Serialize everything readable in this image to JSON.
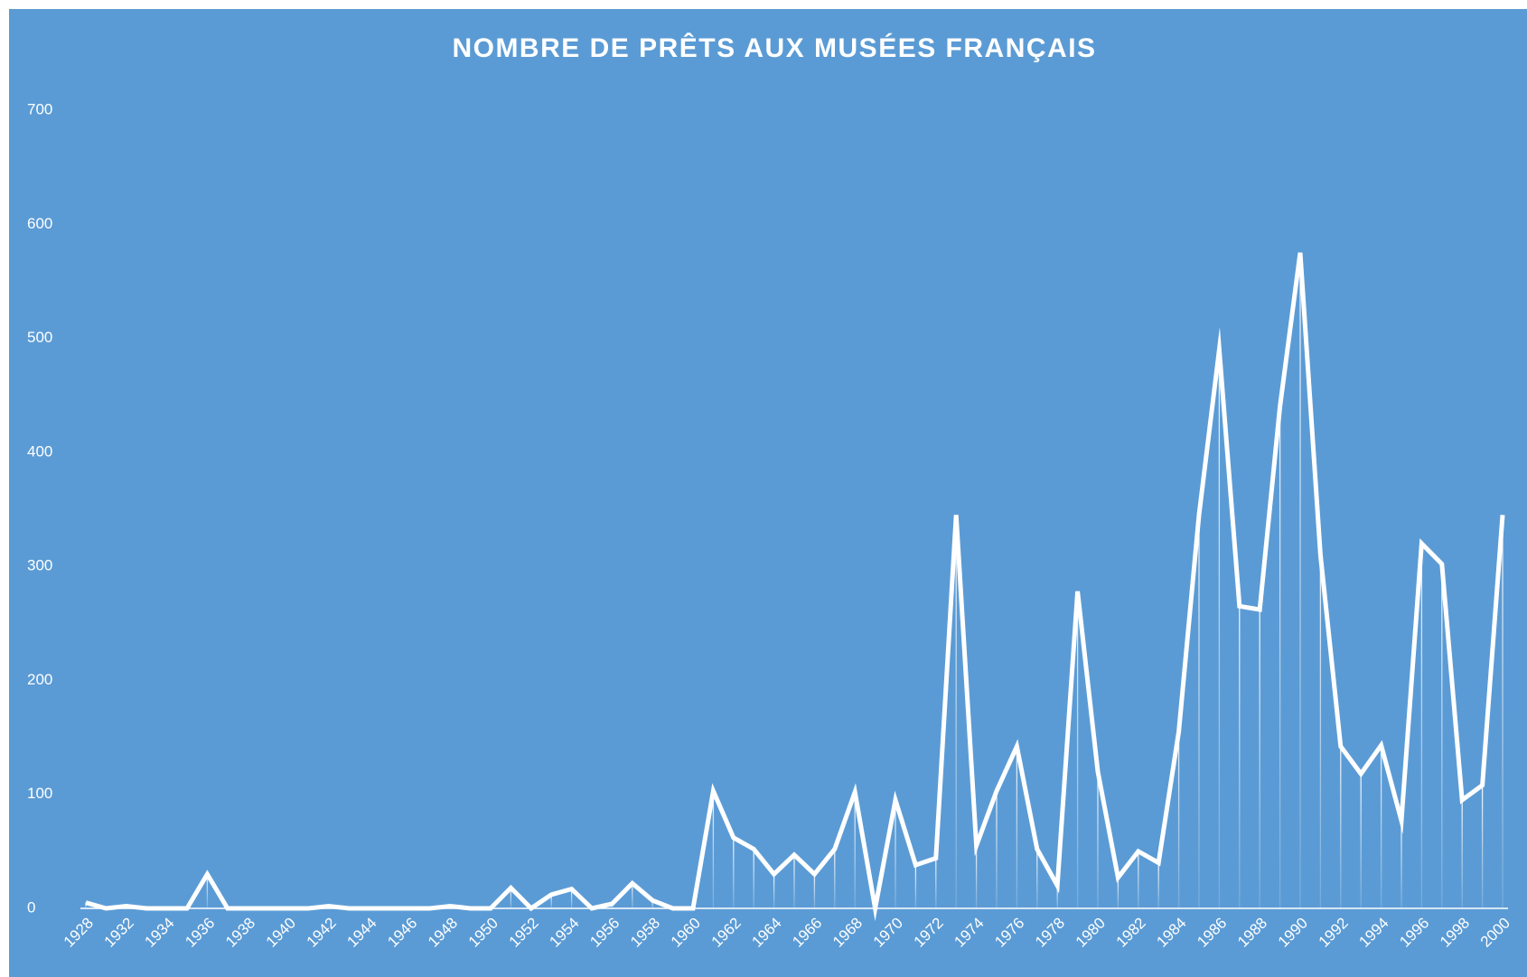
{
  "chart_data": {
    "type": "line",
    "title": "NOMBRE DE PRÊTS AUX MUSÉES FRANÇAIS",
    "categories": [
      "1928",
      null,
      "1932",
      null,
      "1934",
      null,
      "1936",
      null,
      "1938",
      null,
      "1940",
      null,
      "1942",
      null,
      "1944",
      null,
      "1946",
      null,
      "1948",
      null,
      "1950",
      null,
      "1952",
      null,
      "1954",
      null,
      "1956",
      null,
      "1958",
      null,
      "1960",
      null,
      "1962",
      null,
      "1964",
      null,
      "1966",
      null,
      "1968",
      null,
      "1970",
      null,
      "1972",
      null,
      "1974",
      null,
      "1976",
      null,
      "1978",
      null,
      "1980",
      null,
      "1982",
      null,
      "1984",
      null,
      "1986",
      null,
      "1988",
      null,
      "1990",
      null,
      "1992",
      null,
      "1994",
      null,
      "1996",
      null,
      "1998",
      null,
      "2000"
    ],
    "values": [
      5,
      0,
      2,
      0,
      0,
      0,
      30,
      0,
      0,
      0,
      0,
      0,
      2,
      0,
      0,
      0,
      0,
      0,
      2,
      0,
      0,
      18,
      0,
      12,
      17,
      0,
      4,
      22,
      7,
      0,
      0,
      103,
      62,
      52,
      30,
      47,
      30,
      52,
      102,
      0,
      95,
      38,
      44,
      345,
      55,
      103,
      142,
      52,
      20,
      278,
      120,
      27,
      50,
      40,
      155,
      345,
      490,
      265,
      262,
      440,
      575,
      310,
      142,
      118,
      143,
      77,
      320,
      302,
      95,
      108,
      345
    ],
    "color": "#ffffff",
    "ylim": [
      0,
      700
    ],
    "yticks": [
      0,
      100,
      200,
      300,
      400,
      500,
      600,
      700
    ],
    "grid": false
  }
}
